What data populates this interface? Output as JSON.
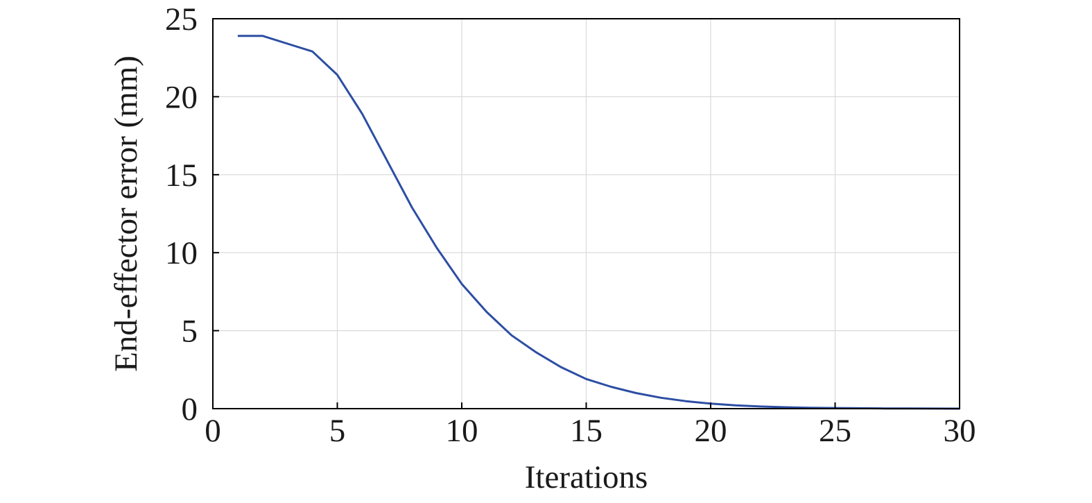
{
  "chart_data": {
    "type": "line",
    "title": "",
    "xlabel": "Iterations",
    "ylabel": "End-effector error (mm)",
    "xlim": [
      0,
      30
    ],
    "ylim": [
      0,
      25
    ],
    "xticks": [
      "0",
      "5",
      "10",
      "15",
      "20",
      "25",
      "30"
    ],
    "yticks": [
      "0",
      "5",
      "10",
      "15",
      "20",
      "25"
    ],
    "grid": true,
    "legend": "none",
    "series": [
      {
        "color": "#2c4ea3",
        "x": [
          1,
          2,
          3,
          4,
          5,
          6,
          7,
          8,
          9,
          10,
          11,
          12,
          13,
          14,
          15,
          16,
          17,
          18,
          19,
          20,
          21,
          22,
          23,
          24,
          25,
          26,
          27,
          28,
          29,
          30
        ],
        "y": [
          23.9,
          23.9,
          23.4,
          22.9,
          21.4,
          18.9,
          15.9,
          12.9,
          10.3,
          8.0,
          6.2,
          4.7,
          3.6,
          2.65,
          1.9,
          1.4,
          1.0,
          0.7,
          0.48,
          0.32,
          0.21,
          0.14,
          0.09,
          0.06,
          0.04,
          0.025,
          0.015,
          0.01,
          0.005,
          0.0
        ]
      }
    ]
  }
}
